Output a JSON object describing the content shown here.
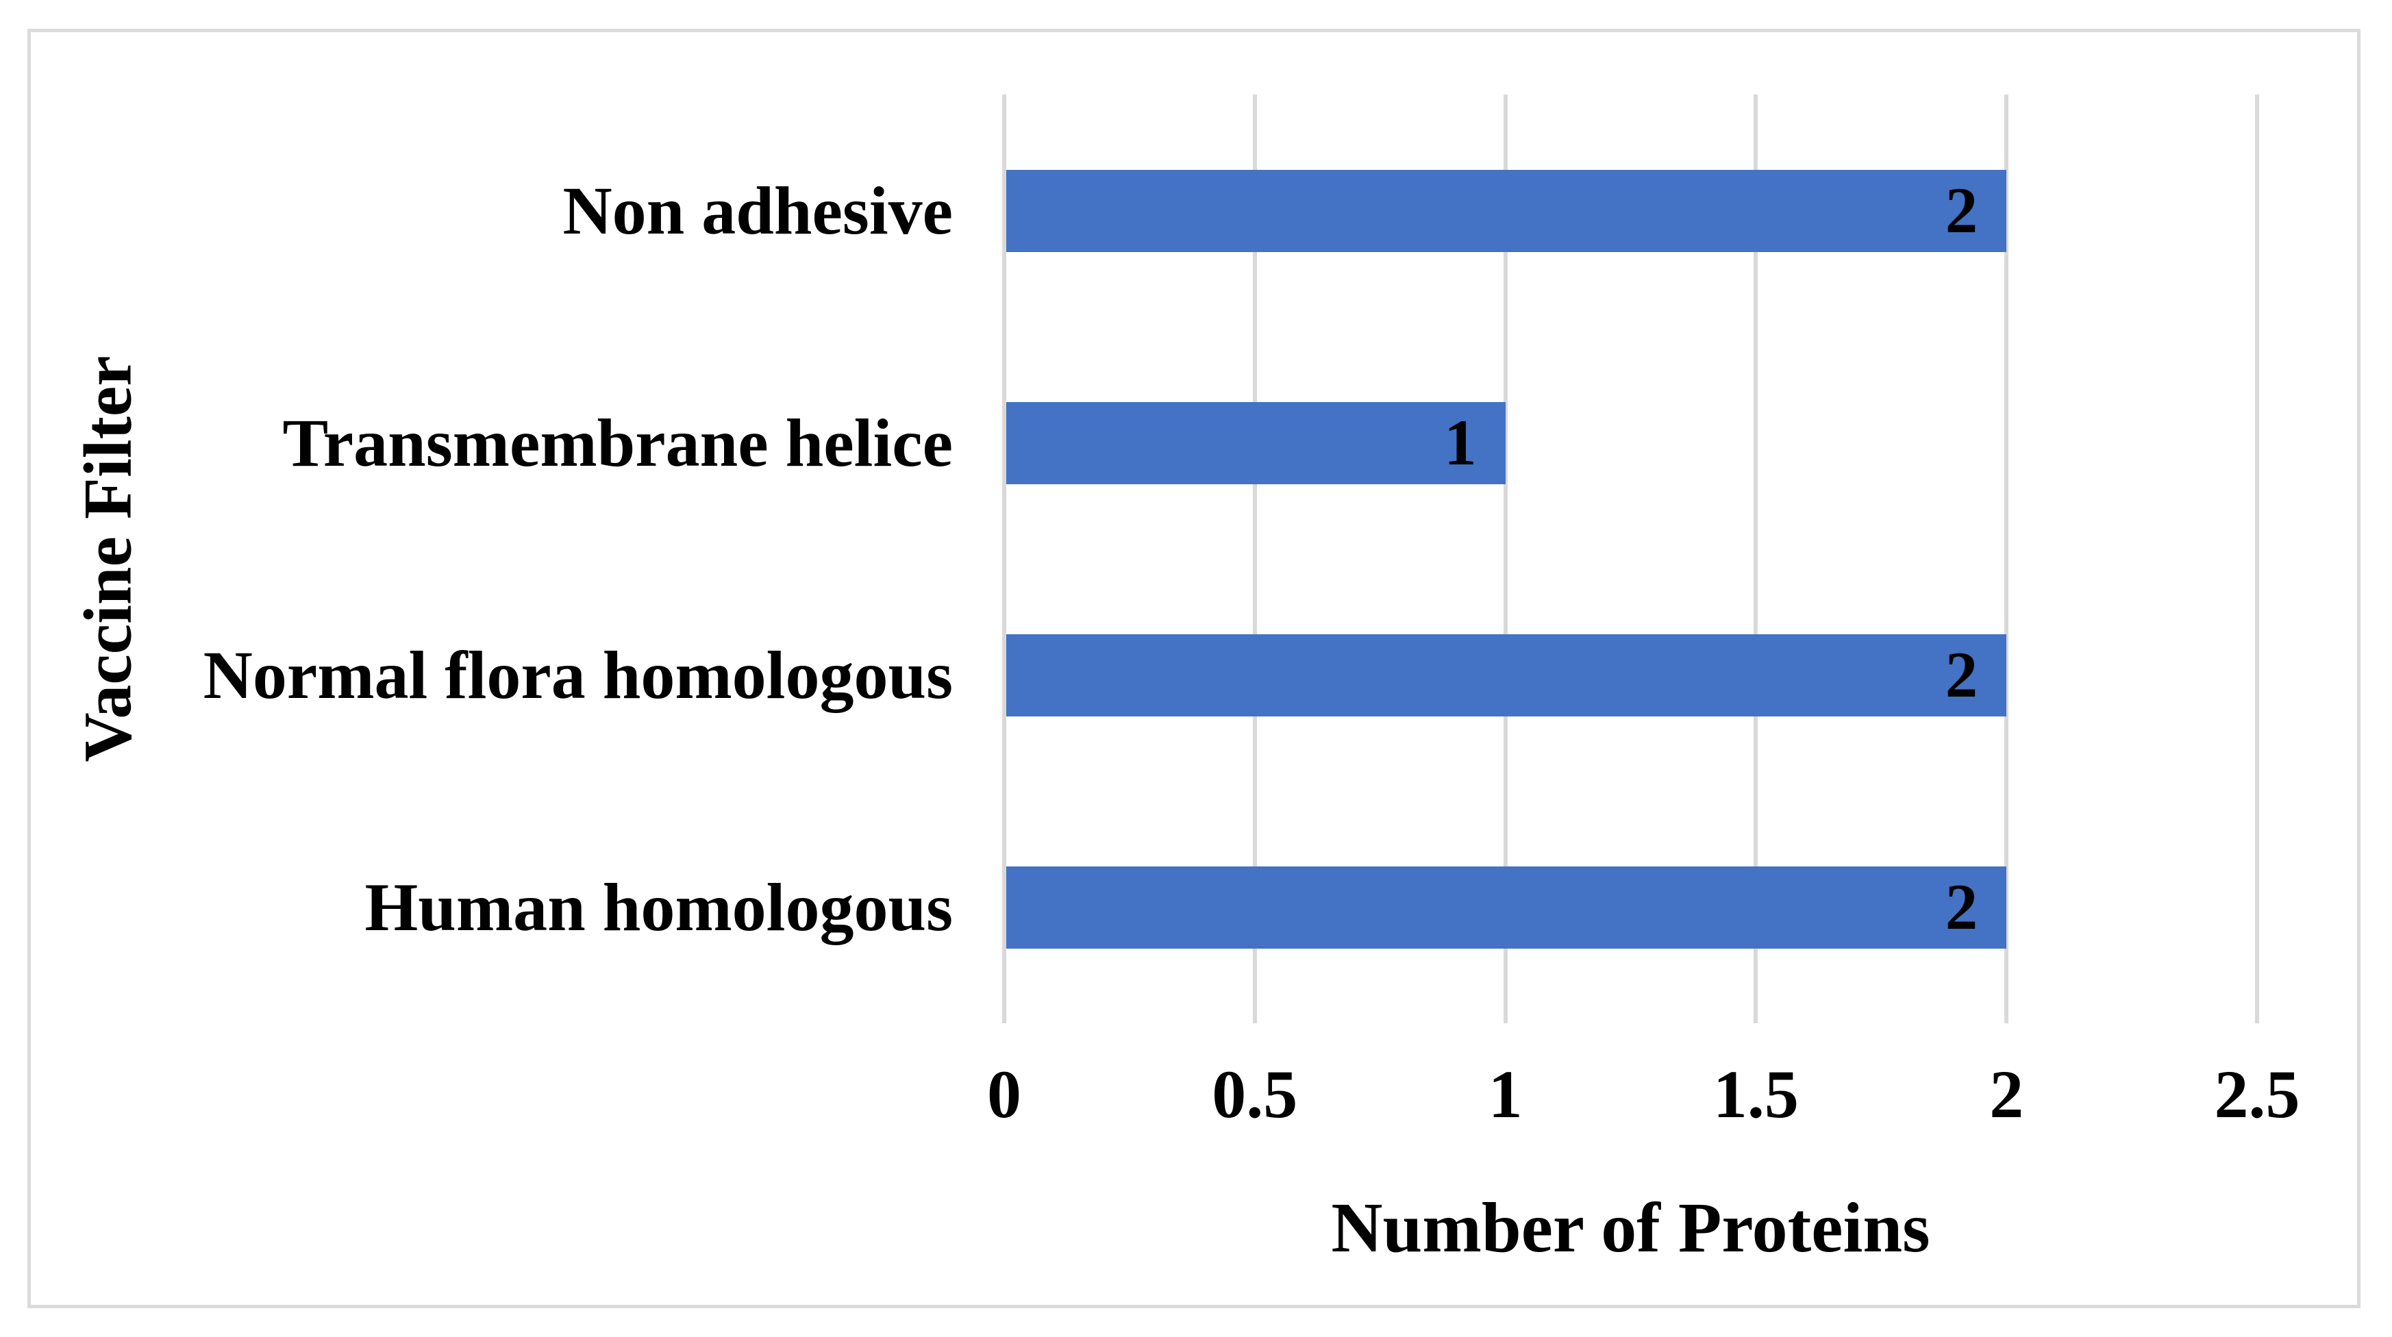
{
  "chart_data": {
    "type": "bar",
    "orientation": "horizontal",
    "categories": [
      "Non adhesive",
      "Transmembrane helice",
      "Normal flora homologous",
      "Human homologous"
    ],
    "values": [
      2,
      1,
      2,
      2
    ],
    "data_labels": [
      "2",
      "1",
      "2",
      "2"
    ],
    "title": "",
    "xlabel": "Number of Proteins",
    "ylabel": "Vaccine Filter",
    "xlim": [
      0,
      2.5
    ],
    "x_ticks": [
      {
        "value": 0,
        "label": "0"
      },
      {
        "value": 0.5,
        "label": "0.5"
      },
      {
        "value": 1,
        "label": "1"
      },
      {
        "value": 1.5,
        "label": "1.5"
      },
      {
        "value": 2,
        "label": "2"
      },
      {
        "value": 2.5,
        "label": "2.5"
      }
    ],
    "grid": "vertical-only",
    "legend": "none",
    "colors": {
      "bar": "#4472C4",
      "gridline": "#D9D9D9",
      "frame_border": "#DBDBDB",
      "text": "#000000",
      "background": "#FFFFFF"
    }
  }
}
